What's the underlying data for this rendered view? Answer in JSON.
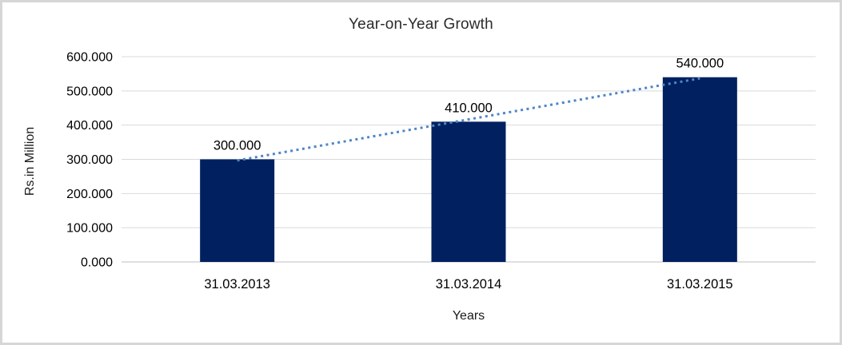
{
  "window": {
    "background": "#FFFFFF",
    "border_color": "#D6D6D6"
  },
  "chart_data": {
    "type": "bar",
    "title": "Year-on-Year Growth",
    "xlabel": "Years",
    "ylabel": "Rs.in Million",
    "categories": [
      "31.03.2013",
      "31.03.2014",
      "31.03.2015"
    ],
    "values": [
      300,
      410,
      540
    ],
    "value_labels": [
      "300.000",
      "410.000",
      "540.000"
    ],
    "yticks": [
      {
        "value": 0,
        "label": "0.000"
      },
      {
        "value": 100,
        "label": "100.000"
      },
      {
        "value": 200,
        "label": "200.000"
      },
      {
        "value": 300,
        "label": "300.000"
      },
      {
        "value": 400,
        "label": "400.000"
      },
      {
        "value": 500,
        "label": "500.000"
      },
      {
        "value": 600,
        "label": "600.000"
      }
    ],
    "ylim": [
      0,
      600
    ],
    "grid": true,
    "legend": "none",
    "trendline": {
      "type": "linear",
      "style": "dotted"
    },
    "colors": {
      "bar": "#002060",
      "trendline": "#4E86C8",
      "gridline": "#D9D9D9",
      "axis_line": "#BFBFBF",
      "text": "#000000"
    }
  }
}
